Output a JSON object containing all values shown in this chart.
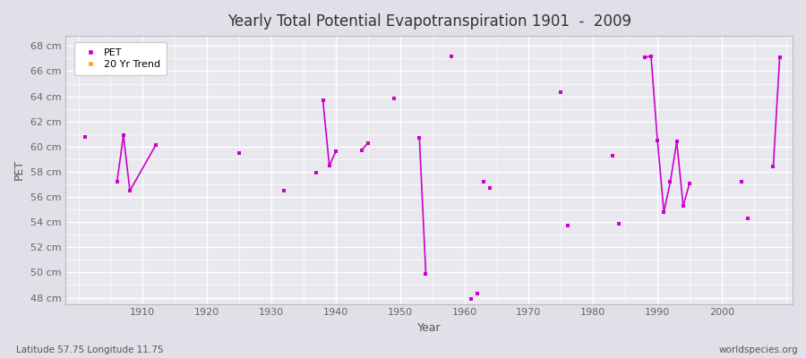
{
  "title": "Yearly Total Potential Evapotranspiration 1901  -  2009",
  "xlabel": "Year",
  "ylabel": "PET",
  "xlim": [
    1898,
    2011
  ],
  "ylim": [
    47.5,
    68.8
  ],
  "yticks": [
    48,
    50,
    52,
    54,
    56,
    58,
    60,
    62,
    64,
    66,
    68
  ],
  "ytick_labels": [
    "48 cm",
    "50 cm",
    "52 cm",
    "54 cm",
    "56 cm",
    "58 cm",
    "60 cm",
    "62 cm",
    "64 cm",
    "66 cm",
    "68 cm"
  ],
  "xticks": [
    1910,
    1920,
    1930,
    1940,
    1950,
    1960,
    1970,
    1980,
    1990,
    2000
  ],
  "pet_color": "#CC00CC",
  "trend_color": "#FFA500",
  "bg_color": "#E8E8EE",
  "grid_color": "#FFFFFF",
  "pet_data": [
    [
      1901,
      60.8
    ],
    [
      1906,
      57.2
    ],
    [
      1907,
      60.9
    ],
    [
      1908,
      56.5
    ],
    [
      1912,
      60.1
    ],
    [
      1925,
      59.5
    ],
    [
      1932,
      56.5
    ],
    [
      1937,
      57.9
    ],
    [
      1938,
      63.7
    ],
    [
      1939,
      58.5
    ],
    [
      1940,
      59.6
    ],
    [
      1944,
      59.7
    ],
    [
      1945,
      60.3
    ],
    [
      1949,
      63.8
    ],
    [
      1953,
      60.7
    ],
    [
      1954,
      49.9
    ],
    [
      1958,
      67.2
    ],
    [
      1961,
      47.9
    ],
    [
      1962,
      48.3
    ],
    [
      1963,
      57.2
    ],
    [
      1964,
      56.7
    ],
    [
      1975,
      64.3
    ],
    [
      1976,
      53.7
    ],
    [
      1983,
      59.3
    ],
    [
      1984,
      53.9
    ],
    [
      1988,
      67.1
    ],
    [
      1989,
      67.2
    ],
    [
      1990,
      60.5
    ],
    [
      1991,
      54.8
    ],
    [
      1992,
      57.2
    ],
    [
      1993,
      60.4
    ],
    [
      1994,
      55.3
    ],
    [
      1995,
      57.1
    ],
    [
      2003,
      57.2
    ],
    [
      2004,
      54.3
    ],
    [
      2008,
      58.4
    ],
    [
      2009,
      67.1
    ]
  ],
  "pet_lines": [
    [
      [
        1906,
        57.2
      ],
      [
        1907,
        60.9
      ]
    ],
    [
      [
        1907,
        60.9
      ],
      [
        1908,
        56.5
      ]
    ],
    [
      [
        1908,
        56.5
      ],
      [
        1912,
        60.1
      ]
    ],
    [
      [
        1938,
        63.7
      ],
      [
        1939,
        58.5
      ]
    ],
    [
      [
        1939,
        58.5
      ],
      [
        1940,
        59.6
      ]
    ],
    [
      [
        1944,
        59.7
      ],
      [
        1945,
        60.3
      ]
    ],
    [
      [
        1953,
        60.7
      ],
      [
        1954,
        49.9
      ]
    ],
    [
      [
        1988,
        67.1
      ],
      [
        1989,
        67.2
      ]
    ],
    [
      [
        1989,
        67.2
      ],
      [
        1990,
        60.5
      ]
    ],
    [
      [
        1990,
        60.5
      ],
      [
        1991,
        54.8
      ]
    ],
    [
      [
        1991,
        54.8
      ],
      [
        1992,
        57.2
      ]
    ],
    [
      [
        1992,
        57.2
      ],
      [
        1993,
        60.4
      ]
    ],
    [
      [
        1993,
        60.4
      ],
      [
        1994,
        55.3
      ]
    ],
    [
      [
        1994,
        55.3
      ],
      [
        1995,
        57.1
      ]
    ],
    [
      [
        2008,
        58.4
      ],
      [
        2009,
        67.1
      ]
    ]
  ],
  "subtitle_left": "Latitude 57.75 Longitude 11.75",
  "subtitle_right": "worldspecies.org",
  "legend_entries": [
    "PET",
    "20 Yr Trend"
  ]
}
